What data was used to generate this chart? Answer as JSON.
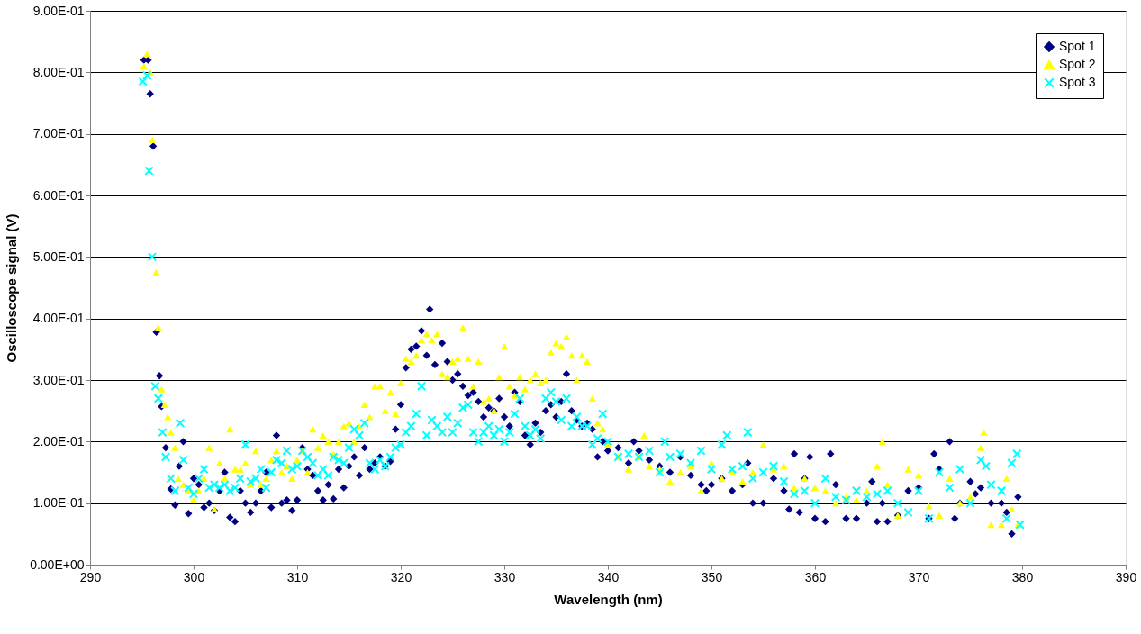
{
  "chart_data": {
    "type": "scatter",
    "xlabel": "Wavelength (nm)",
    "ylabel": "Oscilloscope signal (V)",
    "xlim": [
      290,
      390
    ],
    "xticks": [
      290,
      300,
      310,
      320,
      330,
      340,
      350,
      360,
      370,
      380,
      390
    ],
    "ylim": [
      0,
      0.9
    ],
    "yticks": [
      {
        "value": 0,
        "label": "0.00E+00"
      },
      {
        "value": 0.1,
        "label": "1.00E-01"
      },
      {
        "value": 0.2,
        "label": "2.00E-01"
      },
      {
        "value": 0.3,
        "label": "3.00E-01"
      },
      {
        "value": 0.4,
        "label": "4.00E-01"
      },
      {
        "value": 0.5,
        "label": "5.00E-01"
      },
      {
        "value": 0.6,
        "label": "6.00E-01"
      },
      {
        "value": 0.7,
        "label": "7.00E-01"
      },
      {
        "value": 0.8,
        "label": "8.00E-01"
      },
      {
        "value": 0.9,
        "label": "9.00E-01"
      }
    ],
    "grid": "y",
    "legend": "top right",
    "series": [
      {
        "name": "Spot 1",
        "color": "#000080",
        "marker": "diamond",
        "x": [
          295.2,
          295.6,
          295.8,
          296.1,
          296.4,
          296.7,
          296.9,
          297.3,
          297.8,
          298.2,
          298.6,
          299,
          299.5,
          300,
          300.5,
          301,
          301.5,
          302,
          302.5,
          303,
          303.5,
          304,
          304.5,
          305,
          305.5,
          306,
          306.5,
          307,
          307.5,
          308,
          308.5,
          309,
          309.5,
          310,
          310.5,
          311,
          311.5,
          312,
          312.5,
          313,
          313.5,
          314,
          314.5,
          315,
          315.5,
          316,
          316.5,
          317,
          317.5,
          318,
          318.5,
          319,
          319.5,
          320,
          320.5,
          321,
          321.5,
          322,
          322.5,
          322.8,
          323.3,
          324,
          324.5,
          325,
          325.5,
          326,
          326.5,
          327,
          327.5,
          328,
          328.5,
          329,
          329.5,
          330,
          330.5,
          331,
          331.5,
          332,
          332.5,
          333,
          333.5,
          334,
          334.5,
          335,
          335.5,
          336,
          336.5,
          337,
          337.5,
          338,
          338.5,
          339,
          339.5,
          340,
          341,
          342,
          342.5,
          343,
          344,
          345,
          346,
          347,
          348,
          349,
          349.5,
          350,
          351,
          352,
          353,
          353.5,
          354,
          355,
          356,
          357,
          357.5,
          358,
          358.5,
          359,
          359.5,
          360,
          361,
          361.5,
          362,
          363,
          364,
          365,
          365.5,
          366,
          366.5,
          367,
          368,
          369,
          370,
          371,
          371.5,
          372,
          373,
          373.5,
          374,
          375,
          375.5,
          376,
          377,
          378,
          378.5,
          379,
          379.6
        ],
        "values": [
          0.82,
          0.82,
          0.765,
          0.68,
          0.378,
          0.307,
          0.257,
          0.19,
          0.123,
          0.097,
          0.16,
          0.2,
          0.083,
          0.14,
          0.13,
          0.093,
          0.1,
          0.088,
          0.12,
          0.15,
          0.077,
          0.07,
          0.12,
          0.1,
          0.085,
          0.1,
          0.12,
          0.15,
          0.093,
          0.21,
          0.1,
          0.105,
          0.088,
          0.105,
          0.19,
          0.155,
          0.145,
          0.12,
          0.105,
          0.13,
          0.107,
          0.155,
          0.125,
          0.16,
          0.175,
          0.145,
          0.19,
          0.155,
          0.165,
          0.175,
          0.16,
          0.168,
          0.22,
          0.26,
          0.32,
          0.35,
          0.355,
          0.38,
          0.34,
          0.415,
          0.325,
          0.36,
          0.33,
          0.3,
          0.31,
          0.29,
          0.275,
          0.28,
          0.265,
          0.24,
          0.255,
          0.25,
          0.27,
          0.24,
          0.225,
          0.28,
          0.265,
          0.21,
          0.195,
          0.23,
          0.215,
          0.25,
          0.26,
          0.24,
          0.265,
          0.31,
          0.25,
          0.235,
          0.225,
          0.23,
          0.22,
          0.175,
          0.2,
          0.185,
          0.19,
          0.165,
          0.2,
          0.185,
          0.17,
          0.16,
          0.15,
          0.175,
          0.145,
          0.13,
          0.12,
          0.13,
          0.14,
          0.12,
          0.13,
          0.165,
          0.1,
          0.1,
          0.14,
          0.12,
          0.09,
          0.18,
          0.085,
          0.14,
          0.175,
          0.075,
          0.07,
          0.18,
          0.13,
          0.075,
          0.075,
          0.1,
          0.135,
          0.07,
          0.1,
          0.07,
          0.08,
          0.12,
          0.125,
          0.075,
          0.18,
          0.155,
          0.2,
          0.075,
          0.1,
          0.135,
          0.115,
          0.125,
          0.1,
          0.1,
          0.085,
          0.05,
          0.11
        ]
      },
      {
        "name": "Spot 2",
        "color": "#ffff00",
        "marker": "triangle",
        "x": [
          295.2,
          295.5,
          295.8,
          296,
          296.4,
          296.6,
          296.9,
          297.2,
          297.5,
          297.8,
          298.2,
          298.5,
          299,
          299.5,
          300,
          300.5,
          301,
          301.5,
          302,
          302.5,
          303,
          303.5,
          304,
          304.5,
          305,
          305.5,
          306,
          306.5,
          307,
          307.5,
          308,
          308.5,
          309,
          309.5,
          310,
          310.5,
          311,
          311.5,
          312,
          312.5,
          313,
          313.5,
          314,
          314.5,
          315,
          315.5,
          316,
          316.5,
          317,
          317.5,
          318,
          318.5,
          319,
          319.5,
          320,
          320.5,
          321,
          321.5,
          322,
          322.5,
          323,
          323.5,
          324,
          324.5,
          325,
          325.5,
          326,
          326.5,
          327,
          327.5,
          328,
          328.5,
          329,
          329.5,
          330,
          330.5,
          331,
          331.5,
          332,
          332.5,
          333,
          333.5,
          334,
          334.5,
          335,
          335.5,
          336,
          336.5,
          337,
          337.5,
          338,
          338.5,
          339,
          339.5,
          340,
          341,
          342,
          343,
          343.5,
          344,
          345,
          346,
          347,
          348,
          349,
          350,
          351,
          352,
          353,
          354,
          355,
          356,
          357,
          358,
          359,
          360,
          361,
          362,
          363,
          364,
          365,
          366,
          366.5,
          367,
          368,
          369,
          370,
          371,
          372,
          373,
          374,
          375,
          376,
          376.3,
          377,
          378,
          378.5,
          379,
          379.6
        ],
        "values": [
          0.81,
          0.83,
          0.8,
          0.69,
          0.475,
          0.385,
          0.285,
          0.26,
          0.24,
          0.215,
          0.19,
          0.14,
          0.13,
          0.12,
          0.105,
          0.12,
          0.14,
          0.19,
          0.09,
          0.165,
          0.14,
          0.22,
          0.155,
          0.155,
          0.165,
          0.13,
          0.185,
          0.13,
          0.14,
          0.17,
          0.185,
          0.15,
          0.16,
          0.14,
          0.17,
          0.185,
          0.15,
          0.22,
          0.19,
          0.21,
          0.2,
          0.18,
          0.2,
          0.225,
          0.23,
          0.2,
          0.225,
          0.26,
          0.24,
          0.29,
          0.29,
          0.25,
          0.28,
          0.245,
          0.295,
          0.335,
          0.33,
          0.34,
          0.365,
          0.375,
          0.365,
          0.375,
          0.31,
          0.305,
          0.33,
          0.335,
          0.385,
          0.335,
          0.29,
          0.33,
          0.265,
          0.27,
          0.25,
          0.305,
          0.355,
          0.29,
          0.275,
          0.305,
          0.285,
          0.3,
          0.31,
          0.295,
          0.3,
          0.345,
          0.36,
          0.355,
          0.37,
          0.34,
          0.3,
          0.34,
          0.33,
          0.27,
          0.23,
          0.22,
          0.195,
          0.175,
          0.155,
          0.175,
          0.21,
          0.16,
          0.155,
          0.135,
          0.15,
          0.16,
          0.12,
          0.165,
          0.14,
          0.15,
          0.135,
          0.15,
          0.195,
          0.155,
          0.16,
          0.125,
          0.14,
          0.125,
          0.12,
          0.1,
          0.11,
          0.105,
          0.12,
          0.16,
          0.2,
          0.13,
          0.08,
          0.155,
          0.145,
          0.095,
          0.08,
          0.14,
          0.1,
          0.11,
          0.19,
          0.215,
          0.065,
          0.065,
          0.14,
          0.09,
          0.065
        ]
      },
      {
        "name": "Spot 3",
        "color": "#00ffff",
        "marker": "cross",
        "x": [
          295.1,
          295.5,
          295.7,
          296,
          296.3,
          296.6,
          297,
          297.3,
          297.8,
          298.2,
          298.7,
          299,
          299.5,
          300,
          300.5,
          301,
          301.5,
          302,
          302.5,
          303,
          303.5,
          304,
          304.5,
          305,
          305.5,
          306,
          306.5,
          307,
          307.5,
          308,
          308.5,
          309,
          309.5,
          310,
          310.5,
          311,
          311.5,
          312,
          312.5,
          313,
          313.5,
          314,
          314.5,
          315,
          315.5,
          316,
          316.5,
          317,
          317.5,
          318,
          318.5,
          319,
          319.5,
          320,
          320.5,
          321,
          321.5,
          322,
          322.5,
          323,
          323.5,
          324,
          324.5,
          325,
          325.5,
          326,
          326.5,
          327,
          327.5,
          328,
          328.5,
          329,
          329.5,
          330,
          330.5,
          331,
          331.5,
          332,
          332.5,
          333,
          333.5,
          334,
          334.5,
          335,
          335.5,
          336,
          336.5,
          337,
          337.5,
          338,
          338.5,
          339,
          339.5,
          340,
          341,
          342,
          343,
          344,
          345,
          345.5,
          346,
          347,
          348,
          349,
          350,
          351,
          351.5,
          352,
          353,
          353.5,
          354,
          355,
          356,
          357,
          358,
          359,
          360,
          361,
          362,
          363,
          364,
          365,
          366,
          367,
          368,
          369,
          370,
          371,
          372,
          373,
          374,
          375,
          376,
          376.5,
          377,
          378,
          378.5,
          379,
          379.5,
          379.8
        ],
        "values": [
          0.785,
          0.795,
          0.64,
          0.5,
          0.29,
          0.27,
          0.215,
          0.175,
          0.14,
          0.12,
          0.23,
          0.17,
          0.125,
          0.115,
          0.14,
          0.155,
          0.125,
          0.13,
          0.125,
          0.13,
          0.12,
          0.125,
          0.14,
          0.195,
          0.135,
          0.14,
          0.155,
          0.125,
          0.15,
          0.17,
          0.165,
          0.185,
          0.155,
          0.16,
          0.185,
          0.175,
          0.165,
          0.145,
          0.155,
          0.145,
          0.175,
          0.17,
          0.165,
          0.19,
          0.22,
          0.21,
          0.23,
          0.165,
          0.155,
          0.17,
          0.16,
          0.175,
          0.19,
          0.195,
          0.215,
          0.225,
          0.245,
          0.29,
          0.21,
          0.235,
          0.225,
          0.215,
          0.24,
          0.215,
          0.23,
          0.255,
          0.26,
          0.215,
          0.2,
          0.215,
          0.225,
          0.21,
          0.22,
          0.2,
          0.215,
          0.245,
          0.27,
          0.225,
          0.21,
          0.22,
          0.205,
          0.27,
          0.28,
          0.265,
          0.235,
          0.27,
          0.225,
          0.24,
          0.225,
          0.225,
          0.195,
          0.205,
          0.245,
          0.2,
          0.175,
          0.18,
          0.175,
          0.185,
          0.15,
          0.2,
          0.175,
          0.18,
          0.165,
          0.185,
          0.155,
          0.195,
          0.21,
          0.155,
          0.16,
          0.215,
          0.14,
          0.15,
          0.16,
          0.135,
          0.115,
          0.12,
          0.1,
          0.14,
          0.11,
          0.105,
          0.12,
          0.11,
          0.115,
          0.12,
          0.1,
          0.085,
          0.12,
          0.075,
          0.15,
          0.125,
          0.155,
          0.1,
          0.17,
          0.16,
          0.13,
          0.12,
          0.075,
          0.165,
          0.18,
          0.065
        ]
      }
    ]
  }
}
